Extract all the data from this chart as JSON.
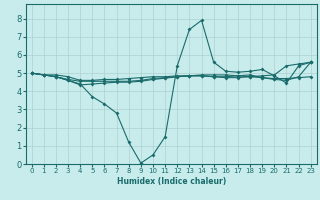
{
  "title": "",
  "xlabel": "Humidex (Indice chaleur)",
  "ylabel": "",
  "xlim": [
    -0.5,
    23.5
  ],
  "ylim": [
    0,
    8.8
  ],
  "xticks": [
    0,
    1,
    2,
    3,
    4,
    5,
    6,
    7,
    8,
    9,
    10,
    11,
    12,
    13,
    14,
    15,
    16,
    17,
    18,
    19,
    20,
    21,
    22,
    23
  ],
  "yticks": [
    0,
    1,
    2,
    3,
    4,
    5,
    6,
    7,
    8
  ],
  "background_color": "#c8ecec",
  "grid_color": "#b0d0d0",
  "line_color": "#1a6b6b",
  "lines": [
    {
      "x": [
        0,
        1,
        2,
        3,
        4,
        5,
        6,
        7,
        8,
        9,
        10,
        11,
        12,
        13,
        14,
        15,
        16,
        17,
        18,
        19,
        20,
        21,
        22,
        23
      ],
      "y": [
        5.0,
        4.9,
        4.9,
        4.8,
        4.6,
        4.6,
        4.65,
        4.65,
        4.7,
        4.75,
        4.8,
        4.8,
        4.85,
        4.85,
        4.9,
        4.9,
        4.9,
        4.85,
        4.8,
        4.75,
        4.7,
        4.7,
        4.75,
        4.8
      ]
    },
    {
      "x": [
        0,
        1,
        2,
        3,
        4,
        5,
        6,
        7,
        8,
        9,
        10,
        11,
        12,
        13,
        14,
        15,
        16,
        17,
        18,
        19,
        20,
        21,
        22,
        23
      ],
      "y": [
        5.0,
        4.9,
        4.8,
        4.6,
        4.4,
        3.7,
        3.3,
        2.8,
        1.2,
        0.05,
        0.5,
        1.5,
        5.4,
        7.4,
        7.9,
        5.6,
        5.1,
        5.05,
        5.1,
        5.2,
        4.85,
        4.45,
        5.4,
        5.6
      ]
    },
    {
      "x": [
        0,
        1,
        2,
        3,
        4,
        5,
        6,
        7,
        8,
        9,
        10,
        11,
        12,
        13,
        14,
        15,
        16,
        17,
        18,
        19,
        20,
        21,
        22,
        23
      ],
      "y": [
        5.0,
        4.9,
        4.8,
        4.6,
        4.35,
        4.4,
        4.45,
        4.5,
        4.5,
        4.55,
        4.65,
        4.72,
        4.8,
        4.85,
        4.85,
        4.8,
        4.8,
        4.85,
        4.9,
        4.75,
        4.65,
        4.6,
        4.8,
        5.6
      ]
    },
    {
      "x": [
        0,
        1,
        2,
        3,
        4,
        5,
        6,
        7,
        8,
        9,
        10,
        11,
        12,
        13,
        14,
        15,
        16,
        17,
        18,
        19,
        20,
        21,
        22,
        23
      ],
      "y": [
        5.0,
        4.9,
        4.8,
        4.65,
        4.55,
        4.55,
        4.55,
        4.55,
        4.55,
        4.6,
        4.7,
        4.75,
        4.8,
        4.85,
        4.85,
        4.8,
        4.75,
        4.75,
        4.8,
        4.85,
        4.9,
        5.4,
        5.5,
        5.6
      ]
    }
  ]
}
